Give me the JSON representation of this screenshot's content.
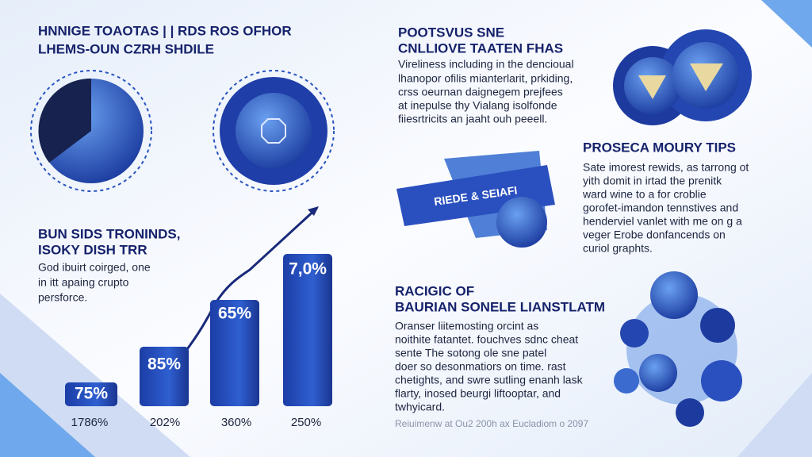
{
  "header": {
    "title": [
      "HNNIGE TOAOTAS | | RDS ROS OFHOR",
      "LHEMS-OUN CZRH SHDILE"
    ]
  },
  "left_section": {
    "heading": [
      "BUN SIDS TRONINDS,",
      "ISOKY DISH TRR"
    ],
    "text": [
      "God ibuirt coirged, one",
      "in itt apaing crupto",
      "persforce."
    ],
    "bars": [
      {
        "label": "75%",
        "axis_label": "1786%"
      },
      {
        "label": "85%",
        "axis_label": "202%"
      },
      {
        "label": "65%",
        "axis_label": "360%"
      },
      {
        "label": "7,0%",
        "axis_label": "250%"
      }
    ]
  },
  "top_right": {
    "heading": [
      "POOTSVUS SNE",
      "CNLLIOVE TAATEN FHAS"
    ],
    "text": [
      "Vireliness including in the dencioual",
      "lhanopor ofilis mianterlarit, prkiding,",
      "crss oeurnan daignegem prejfees",
      "at inepulse thy Vialang isolfonde",
      "fiiesrtricits an jaaht ouh peeell."
    ]
  },
  "ribbon": {
    "label": "RIEDE & SEIAFI"
  },
  "middle_right": {
    "heading": "PROSECA MOURY TIPS",
    "text": [
      "Sate imorest rewids, as tarrong ot",
      "yith domit in irtad the prenitk",
      "ward wine to a for croblie",
      "gorofet-imandon tennstives and",
      "henderviel vanlet with me on g a",
      "veger Erobe donfancends on",
      "curiol graphts."
    ]
  },
  "bottom_right": {
    "heading": [
      "RACIGIC OF",
      "BAURIAN SONELE LIANSTLATM"
    ],
    "text": [
      "Oranser liitemosting orcint as",
      "noithite fatantet. fouchves sdnc cheat",
      "sente The sotong ole sne patel",
      "doer so desonmatiors on time. rast",
      "chetights, and swre sutling enanh lask",
      "flarty, inosed beurgi liftooptar, and",
      "twhyicard."
    ]
  },
  "footer": {
    "text": "Reiuimenw at Ou2 200h ax Eucladiom o 2097"
  }
}
